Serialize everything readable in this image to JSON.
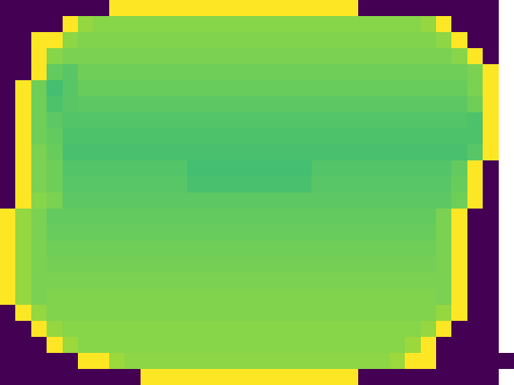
{
  "chart_data": {
    "type": "heatmap",
    "color": "Viridis",
    "tick_labels": false,
    "zlim": [
      0,
      1
    ],
    "cells": [
      [
        0,
        0,
        0,
        0,
        0,
        0,
        0,
        1,
        1,
        1,
        1,
        1,
        1,
        1,
        1,
        1,
        1,
        1,
        1,
        1,
        1,
        1,
        1,
        0,
        0,
        0,
        0,
        0,
        0,
        0,
        0,
        0
      ],
      [
        0,
        0,
        0,
        0,
        1,
        0.84,
        0.82,
        0.82,
        0.82,
        0.82,
        0.82,
        0.82,
        0.82,
        0.82,
        0.82,
        0.82,
        0.82,
        0.82,
        0.82,
        0.82,
        0.82,
        0.82,
        0.82,
        0.82,
        0.82,
        0.82,
        0.82,
        0.84,
        1,
        0,
        0,
        0
      ],
      [
        0,
        0,
        1,
        1,
        0.83,
        0.81,
        0.81,
        0.81,
        0.81,
        0.81,
        0.81,
        0.81,
        0.81,
        0.81,
        0.81,
        0.81,
        0.81,
        0.81,
        0.81,
        0.81,
        0.81,
        0.81,
        0.81,
        0.81,
        0.81,
        0.81,
        0.81,
        0.81,
        0.83,
        1,
        0,
        0
      ],
      [
        0,
        0,
        1,
        0.82,
        0.8,
        0.8,
        0.8,
        0.8,
        0.8,
        0.8,
        0.8,
        0.8,
        0.8,
        0.8,
        0.8,
        0.8,
        0.8,
        0.8,
        0.8,
        0.8,
        0.8,
        0.8,
        0.8,
        0.8,
        0.8,
        0.8,
        0.8,
        0.8,
        0.8,
        0.82,
        1,
        0
      ],
      [
        0,
        0,
        1,
        0.76,
        0.74,
        0.78,
        0.78,
        0.78,
        0.78,
        0.78,
        0.78,
        0.78,
        0.78,
        0.78,
        0.78,
        0.78,
        0.78,
        0.78,
        0.78,
        0.78,
        0.78,
        0.78,
        0.78,
        0.78,
        0.78,
        0.78,
        0.78,
        0.78,
        0.78,
        0.78,
        0.8,
        1
      ],
      [
        0,
        1,
        0.78,
        0.7,
        0.74,
        0.77,
        0.77,
        0.77,
        0.77,
        0.77,
        0.77,
        0.77,
        0.77,
        0.77,
        0.77,
        0.77,
        0.77,
        0.77,
        0.77,
        0.77,
        0.77,
        0.77,
        0.77,
        0.77,
        0.77,
        0.77,
        0.77,
        0.77,
        0.77,
        0.77,
        0.8,
        1
      ],
      [
        0,
        1,
        0.78,
        0.72,
        0.74,
        0.75,
        0.75,
        0.75,
        0.75,
        0.75,
        0.75,
        0.75,
        0.75,
        0.75,
        0.75,
        0.75,
        0.75,
        0.75,
        0.75,
        0.75,
        0.75,
        0.75,
        0.75,
        0.75,
        0.75,
        0.75,
        0.75,
        0.75,
        0.75,
        0.75,
        0.78,
        1
      ],
      [
        0,
        1,
        0.78,
        0.75,
        0.73,
        0.73,
        0.73,
        0.73,
        0.73,
        0.73,
        0.73,
        0.73,
        0.73,
        0.73,
        0.73,
        0.73,
        0.73,
        0.73,
        0.73,
        0.73,
        0.73,
        0.73,
        0.73,
        0.73,
        0.73,
        0.73,
        0.73,
        0.73,
        0.73,
        0.73,
        0.72,
        1
      ],
      [
        0,
        1,
        0.78,
        0.76,
        0.72,
        0.72,
        0.72,
        0.72,
        0.72,
        0.72,
        0.72,
        0.72,
        0.72,
        0.72,
        0.72,
        0.72,
        0.72,
        0.72,
        0.72,
        0.72,
        0.72,
        0.72,
        0.72,
        0.72,
        0.72,
        0.72,
        0.72,
        0.72,
        0.72,
        0.72,
        0.72,
        1
      ],
      [
        0,
        1,
        0.8,
        0.77,
        0.71,
        0.71,
        0.71,
        0.71,
        0.71,
        0.71,
        0.71,
        0.71,
        0.71,
        0.71,
        0.71,
        0.71,
        0.71,
        0.71,
        0.71,
        0.71,
        0.71,
        0.71,
        0.71,
        0.71,
        0.71,
        0.71,
        0.71,
        0.71,
        0.71,
        0.71,
        0.74,
        1
      ],
      [
        0,
        1,
        0.8,
        0.78,
        0.73,
        0.73,
        0.73,
        0.73,
        0.73,
        0.73,
        0.73,
        0.73,
        0.7,
        0.7,
        0.7,
        0.7,
        0.7,
        0.7,
        0.7,
        0.7,
        0.73,
        0.73,
        0.73,
        0.73,
        0.73,
        0.73,
        0.73,
        0.73,
        0.73,
        0.76,
        1,
        0
      ],
      [
        0,
        1,
        0.8,
        0.78,
        0.74,
        0.74,
        0.74,
        0.74,
        0.74,
        0.74,
        0.74,
        0.74,
        0.71,
        0.71,
        0.71,
        0.71,
        0.71,
        0.71,
        0.71,
        0.71,
        0.74,
        0.74,
        0.74,
        0.74,
        0.74,
        0.74,
        0.74,
        0.74,
        0.74,
        0.77,
        1,
        0
      ],
      [
        0,
        1,
        0.82,
        0.8,
        0.75,
        0.75,
        0.75,
        0.75,
        0.75,
        0.75,
        0.75,
        0.75,
        0.75,
        0.75,
        0.75,
        0.75,
        0.75,
        0.75,
        0.75,
        0.75,
        0.75,
        0.75,
        0.75,
        0.75,
        0.75,
        0.75,
        0.75,
        0.75,
        0.75,
        0.78,
        1,
        0
      ],
      [
        1,
        0.84,
        0.8,
        0.76,
        0.76,
        0.76,
        0.76,
        0.76,
        0.76,
        0.76,
        0.76,
        0.76,
        0.76,
        0.76,
        0.76,
        0.76,
        0.76,
        0.76,
        0.76,
        0.76,
        0.76,
        0.76,
        0.76,
        0.76,
        0.76,
        0.76,
        0.76,
        0.76,
        0.8,
        1,
        0,
        0
      ],
      [
        1,
        0.84,
        0.8,
        0.77,
        0.77,
        0.77,
        0.77,
        0.77,
        0.77,
        0.77,
        0.77,
        0.77,
        0.77,
        0.77,
        0.77,
        0.77,
        0.77,
        0.77,
        0.77,
        0.77,
        0.77,
        0.77,
        0.77,
        0.77,
        0.77,
        0.77,
        0.77,
        0.77,
        0.8,
        1,
        0,
        0
      ],
      [
        1,
        0.84,
        0.8,
        0.78,
        0.78,
        0.78,
        0.78,
        0.78,
        0.78,
        0.78,
        0.78,
        0.78,
        0.78,
        0.78,
        0.78,
        0.78,
        0.78,
        0.78,
        0.78,
        0.78,
        0.78,
        0.78,
        0.78,
        0.78,
        0.78,
        0.78,
        0.78,
        0.78,
        0.8,
        1,
        0,
        0
      ],
      [
        1,
        0.84,
        0.8,
        0.79,
        0.79,
        0.79,
        0.79,
        0.79,
        0.79,
        0.79,
        0.79,
        0.79,
        0.79,
        0.79,
        0.79,
        0.79,
        0.79,
        0.79,
        0.79,
        0.79,
        0.79,
        0.79,
        0.79,
        0.79,
        0.79,
        0.79,
        0.79,
        0.79,
        0.8,
        1,
        0,
        0
      ],
      [
        1,
        0.84,
        0.8,
        0.8,
        0.8,
        0.8,
        0.8,
        0.8,
        0.8,
        0.8,
        0.8,
        0.8,
        0.8,
        0.8,
        0.8,
        0.8,
        0.8,
        0.8,
        0.8,
        0.8,
        0.8,
        0.8,
        0.8,
        0.8,
        0.8,
        0.8,
        0.8,
        0.8,
        0.8,
        1,
        0,
        0
      ],
      [
        1,
        0.84,
        0.8,
        0.81,
        0.81,
        0.81,
        0.81,
        0.81,
        0.81,
        0.81,
        0.81,
        0.81,
        0.81,
        0.81,
        0.81,
        0.81,
        0.81,
        0.81,
        0.81,
        0.81,
        0.81,
        0.81,
        0.81,
        0.81,
        0.81,
        0.81,
        0.81,
        0.81,
        0.8,
        1,
        0,
        0
      ],
      [
        0,
        1,
        0.84,
        0.81,
        0.81,
        0.81,
        0.81,
        0.81,
        0.81,
        0.81,
        0.81,
        0.81,
        0.81,
        0.81,
        0.81,
        0.81,
        0.81,
        0.81,
        0.81,
        0.81,
        0.81,
        0.81,
        0.81,
        0.81,
        0.81,
        0.81,
        0.81,
        0.81,
        0.84,
        1,
        0,
        0
      ],
      [
        0,
        0,
        1,
        0.84,
        0.82,
        0.82,
        0.82,
        0.82,
        0.82,
        0.82,
        0.82,
        0.82,
        0.82,
        0.82,
        0.82,
        0.82,
        0.82,
        0.82,
        0.82,
        0.82,
        0.82,
        0.82,
        0.82,
        0.82,
        0.82,
        0.82,
        0.82,
        0.84,
        1,
        0,
        0,
        0
      ],
      [
        0,
        0,
        0,
        1,
        0.85,
        0.82,
        0.82,
        0.82,
        0.82,
        0.82,
        0.82,
        0.82,
        0.82,
        0.82,
        0.82,
        0.82,
        0.82,
        0.82,
        0.82,
        0.82,
        0.82,
        0.82,
        0.82,
        0.82,
        0.82,
        0.82,
        0.85,
        1,
        0,
        0,
        0,
        0
      ],
      [
        0,
        0,
        0,
        0,
        0,
        1,
        1,
        0.85,
        0.83,
        0.83,
        0.83,
        0.83,
        0.83,
        0.83,
        0.83,
        0.83,
        0.83,
        0.83,
        0.83,
        0.83,
        0.83,
        0.83,
        0.83,
        0.83,
        0.83,
        0.85,
        1,
        1,
        0,
        0,
        0,
        0,
        0
      ],
      [
        0,
        0,
        0,
        0,
        0,
        0,
        0,
        0,
        0,
        1,
        1,
        1,
        1,
        1,
        1,
        1,
        1,
        1,
        1,
        1,
        1,
        1,
        1,
        0,
        0,
        0,
        0,
        0,
        0,
        0,
        0,
        0
      ]
    ]
  }
}
